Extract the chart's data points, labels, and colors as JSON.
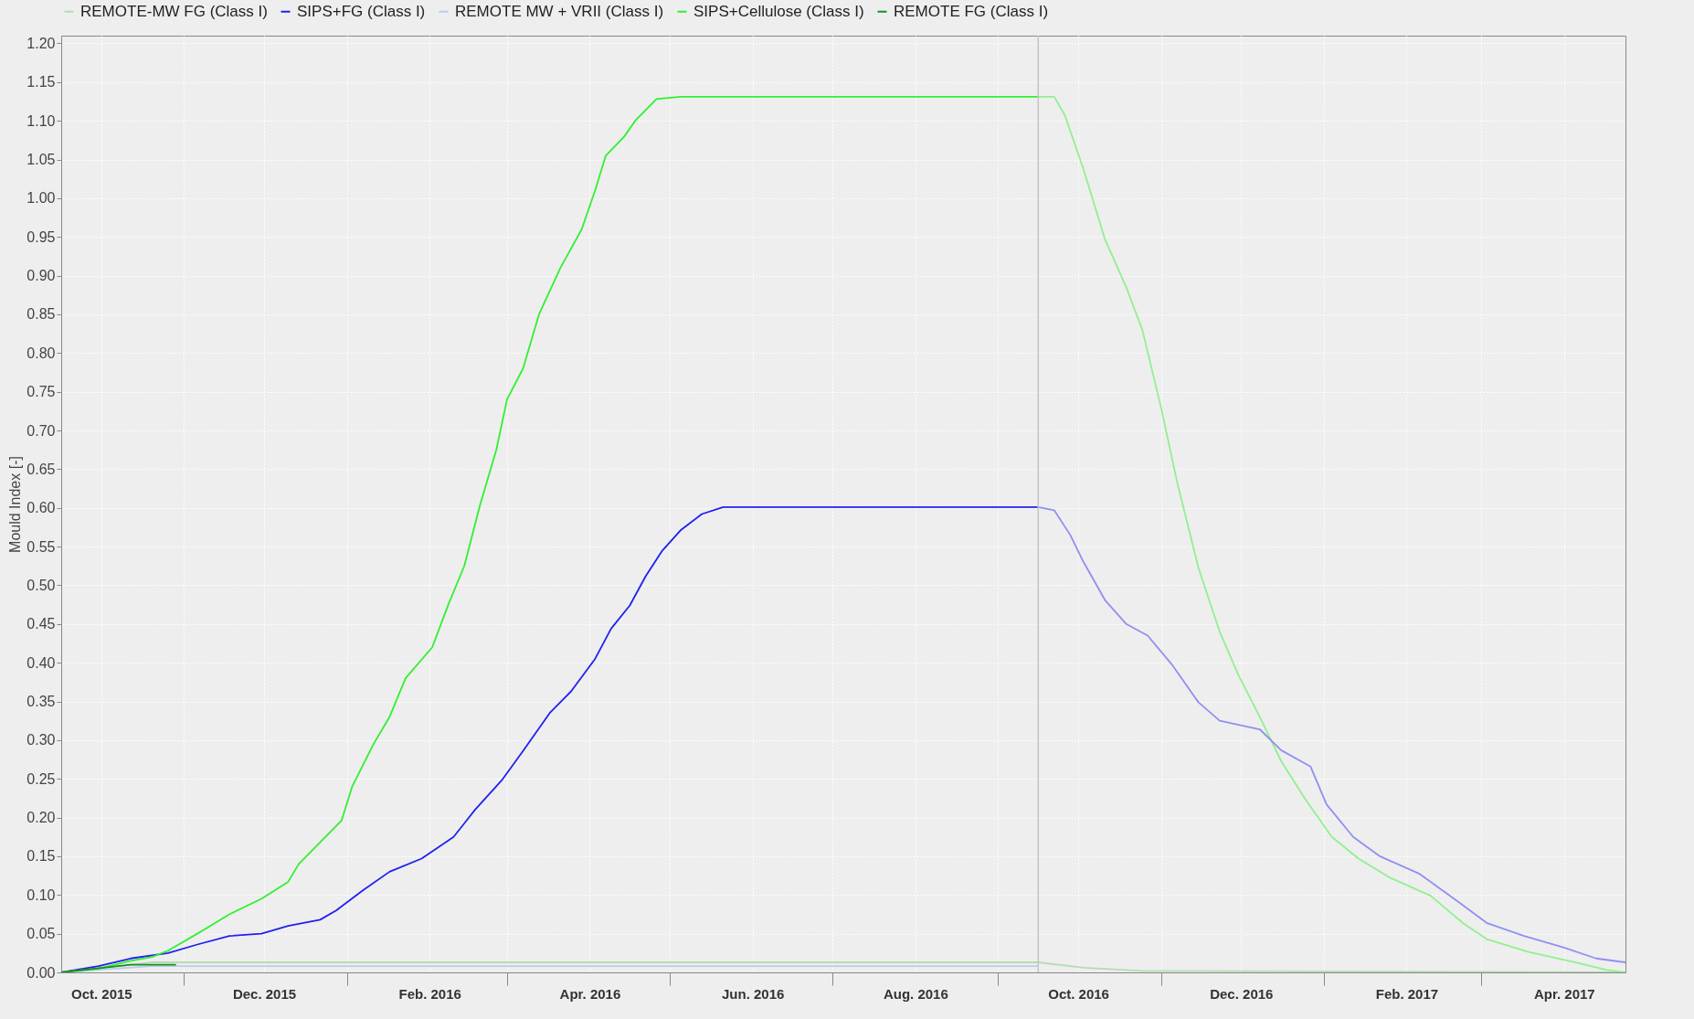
{
  "chart_data": {
    "type": "line",
    "ylabel": "Mould Index [-]",
    "xlim": [
      "2015-09-16",
      "2017-04-24"
    ],
    "ylim": [
      0,
      1.21
    ],
    "xticks": [
      {
        "value": "2015-10-01",
        "label": "Oct. 2015"
      },
      {
        "value": "2015-11-01",
        "label": null
      },
      {
        "value": "2015-12-01",
        "label": "Dec. 2015"
      },
      {
        "value": "2016-01-01",
        "label": null
      },
      {
        "value": "2016-02-01",
        "label": "Feb. 2016"
      },
      {
        "value": "2016-03-01",
        "label": null
      },
      {
        "value": "2016-04-01",
        "label": "Apr. 2016"
      },
      {
        "value": "2016-05-01",
        "label": null
      },
      {
        "value": "2016-06-01",
        "label": "Jun. 2016"
      },
      {
        "value": "2016-07-01",
        "label": null
      },
      {
        "value": "2016-08-01",
        "label": "Aug. 2016"
      },
      {
        "value": "2016-09-01",
        "label": null
      },
      {
        "value": "2016-10-01",
        "label": "Oct. 2016"
      },
      {
        "value": "2016-11-01",
        "label": null
      },
      {
        "value": "2016-12-01",
        "label": "Dec. 2016"
      },
      {
        "value": "2017-01-01",
        "label": null
      },
      {
        "value": "2017-02-01",
        "label": "Feb. 2017"
      },
      {
        "value": "2017-03-01",
        "label": null
      },
      {
        "value": "2017-04-01",
        "label": "Apr. 2017"
      }
    ],
    "yticks": [
      {
        "value": 0,
        "label": "0.00"
      },
      0.05,
      {
        "value": 0.1,
        "label": "0.10"
      },
      0.15,
      {
        "value": 0.2,
        "label": "0.20"
      },
      0.25,
      {
        "value": 0.3,
        "label": "0.30"
      },
      0.35,
      {
        "value": 0.4,
        "label": "0.40"
      },
      0.45,
      {
        "value": 0.5,
        "label": "0.50"
      },
      0.55,
      {
        "value": 0.6,
        "label": "0.60"
      },
      0.65,
      {
        "value": 0.7,
        "label": "0.70"
      },
      0.75,
      {
        "value": 0.8,
        "label": "0.80"
      },
      0.85,
      {
        "value": 0.9,
        "label": "0.90"
      },
      0.95,
      {
        "value": 1,
        "label": "1.00"
      },
      1.05,
      {
        "value": 1.1,
        "label": "1.10"
      },
      1.15,
      {
        "value": 1.2,
        "label": "1.20"
      }
    ],
    "grid": true,
    "legend": "top",
    "ref_lines": [
      {
        "axis": "x",
        "value": "2016-09-16",
        "color": "#c4c4c4"
      }
    ],
    "series": [
      {
        "name": "REMOTE-MW FG (Class I)",
        "color": "#b4dcb4",
        "x": [
          "2015-09-16",
          "2015-10-20",
          "2016-09-16",
          "2016-10-03",
          "2016-10-25",
          "2017-04-24"
        ],
        "values": [
          0,
          0.013,
          0.013,
          0.006,
          0.002,
          0
        ]
      },
      {
        "name": "SIPS+FG (Class I)",
        "color": "#2020f0",
        "x": [
          "2015-09-16",
          "2015-09-30",
          "2015-10-12",
          "2015-10-26",
          "2015-11-06",
          "2015-11-18",
          "2015-11-30",
          "2015-12-10",
          "2015-12-22",
          "2015-12-28",
          "2016-01-07",
          "2016-01-17",
          "2016-01-29",
          "2016-02-10",
          "2016-02-18",
          "2016-02-28",
          "2016-03-07",
          "2016-03-17",
          "2016-03-25",
          "2016-04-03",
          "2016-04-09",
          "2016-04-16",
          "2016-04-22",
          "2016-04-28",
          "2016-05-05",
          "2016-05-13",
          "2016-05-21",
          "2016-09-16"
        ],
        "values": [
          0,
          0.008,
          0.018,
          0.025,
          0.036,
          0.047,
          0.05,
          0.06,
          0.068,
          0.08,
          0.106,
          0.13,
          0.147,
          0.175,
          0.21,
          0.248,
          0.286,
          0.335,
          0.363,
          0.405,
          0.444,
          0.474,
          0.512,
          0.544,
          0.571,
          0.592,
          0.601,
          0.601
        ]
      },
      {
        "name": "REMOTE MW + VRII (Class I)",
        "color": "#b8cdf0",
        "x": [
          "2015-09-16",
          "2015-10-20",
          "2016-09-16"
        ],
        "values": [
          0,
          0.008,
          0.008
        ]
      },
      {
        "name": "SIPS+Cellulose (Class I)",
        "color": "#30f030",
        "x": [
          "2015-09-16",
          "2015-09-30",
          "2015-10-12",
          "2015-10-20",
          "2015-10-26",
          "2015-11-06",
          "2015-11-18",
          "2015-11-30",
          "2015-12-10",
          "2015-12-14",
          "2015-12-22",
          "2015-12-30",
          "2016-01-03",
          "2016-01-11",
          "2016-01-17",
          "2016-01-23",
          "2016-02-02",
          "2016-02-08",
          "2016-02-14",
          "2016-02-20",
          "2016-02-26",
          "2016-03-01",
          "2016-03-07",
          "2016-03-13",
          "2016-03-21",
          "2016-03-29",
          "2016-04-03",
          "2016-04-07",
          "2016-04-14",
          "2016-04-18",
          "2016-04-26",
          "2016-05-05",
          "2016-09-16"
        ],
        "values": [
          0,
          0.005,
          0.015,
          0.02,
          0.028,
          0.05,
          0.075,
          0.095,
          0.117,
          0.14,
          0.168,
          0.196,
          0.24,
          0.295,
          0.33,
          0.38,
          0.42,
          0.475,
          0.525,
          0.605,
          0.675,
          0.74,
          0.78,
          0.85,
          0.91,
          0.96,
          1.01,
          1.055,
          1.08,
          1.1,
          1.128,
          1.131,
          1.131
        ]
      },
      {
        "name": "REMOTE FG (Class I)",
        "color": "#18901c",
        "x": [
          "2015-09-16",
          "2015-10-12",
          "2015-10-29"
        ],
        "values": [
          0,
          0.01,
          0.01
        ]
      },
      {
        "color": "#90f090",
        "x": [
          "2016-09-16",
          "2016-09-22",
          "2016-09-26",
          "2016-10-03",
          "2016-10-11",
          "2016-10-19",
          "2016-10-25",
          "2016-11-01",
          "2016-11-07",
          "2016-11-15",
          "2016-11-23",
          "2016-11-30",
          "2016-12-08",
          "2016-12-16",
          "2016-12-25",
          "2017-01-04",
          "2017-01-14",
          "2017-01-26",
          "2017-02-10",
          "2017-02-22",
          "2017-03-03",
          "2017-03-19",
          "2017-04-05",
          "2017-04-17",
          "2017-04-24"
        ],
        "values": [
          1.131,
          1.131,
          1.107,
          1.037,
          0.947,
          0.885,
          0.83,
          0.73,
          0.634,
          0.523,
          0.44,
          0.384,
          0.33,
          0.273,
          0.224,
          0.175,
          0.147,
          0.122,
          0.099,
          0.064,
          0.043,
          0.026,
          0.013,
          0.003,
          0
        ]
      },
      {
        "color": "#9090f0",
        "x": [
          "2016-09-16",
          "2016-09-22",
          "2016-09-28",
          "2016-10-03",
          "2016-10-11",
          "2016-10-19",
          "2016-10-27",
          "2016-11-05",
          "2016-11-15",
          "2016-11-23",
          "2016-12-08",
          "2016-12-16",
          "2016-12-27",
          "2017-01-02",
          "2017-01-12",
          "2017-01-22",
          "2017-02-06",
          "2017-02-20",
          "2017-03-03",
          "2017-03-17",
          "2017-04-01",
          "2017-04-13",
          "2017-04-24"
        ],
        "values": [
          0.601,
          0.597,
          0.565,
          0.53,
          0.481,
          0.45,
          0.435,
          0.398,
          0.349,
          0.325,
          0.314,
          0.287,
          0.266,
          0.217,
          0.175,
          0.15,
          0.127,
          0.092,
          0.064,
          0.047,
          0.032,
          0.018,
          0.013
        ]
      }
    ]
  }
}
